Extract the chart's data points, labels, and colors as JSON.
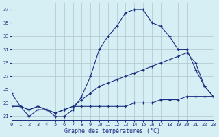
{
  "title": "Graphe des températures (°C)",
  "background_color": "#d6eff5",
  "grid_color": "#b0c4cc",
  "line_color": "#1a3080",
  "xlim": [
    0,
    23
  ],
  "ylim": [
    20.5,
    38
  ],
  "yticks": [
    21,
    23,
    25,
    27,
    29,
    31,
    33,
    35,
    37
  ],
  "xticks": [
    0,
    1,
    2,
    3,
    4,
    5,
    6,
    7,
    8,
    9,
    10,
    11,
    12,
    13,
    14,
    15,
    16,
    17,
    18,
    19,
    20,
    21,
    22,
    23
  ],
  "line1_x": [
    0,
    1,
    2,
    3,
    4,
    5,
    6,
    7,
    8,
    9,
    10,
    11,
    12,
    13,
    14,
    15,
    16,
    17,
    18,
    19,
    20,
    21,
    22,
    23
  ],
  "line1_y": [
    24.5,
    22.5,
    21.0,
    22.0,
    22.0,
    21.0,
    21.0,
    22.0,
    24.0,
    27.0,
    31.0,
    33.0,
    34.5,
    36.5,
    37.0,
    37.0,
    35.0,
    34.5,
    33.0,
    31.0,
    31.0,
    28.0,
    25.5,
    24.0
  ],
  "line2_x": [
    0,
    1,
    2,
    3,
    4,
    5,
    6,
    7,
    8,
    9,
    10,
    11,
    12,
    13,
    14,
    15,
    16,
    17,
    18,
    19,
    20,
    21,
    22,
    23
  ],
  "line2_y": [
    22.5,
    22.5,
    22.0,
    22.5,
    22.0,
    21.5,
    22.0,
    22.5,
    23.5,
    24.5,
    25.5,
    26.0,
    26.5,
    27.0,
    27.5,
    28.0,
    28.5,
    29.0,
    29.5,
    30.0,
    30.5,
    29.0,
    25.5,
    24.0
  ],
  "line3_x": [
    0,
    1,
    2,
    3,
    4,
    5,
    6,
    7,
    8,
    9,
    10,
    11,
    12,
    13,
    14,
    15,
    16,
    17,
    18,
    19,
    20,
    21,
    22,
    23
  ],
  "line3_y": [
    22.5,
    22.5,
    22.0,
    22.5,
    22.0,
    21.5,
    22.0,
    22.5,
    22.5,
    22.5,
    22.5,
    22.5,
    22.5,
    22.5,
    23.0,
    23.0,
    23.0,
    23.5,
    23.5,
    23.5,
    24.0,
    24.0,
    24.0,
    24.0
  ]
}
